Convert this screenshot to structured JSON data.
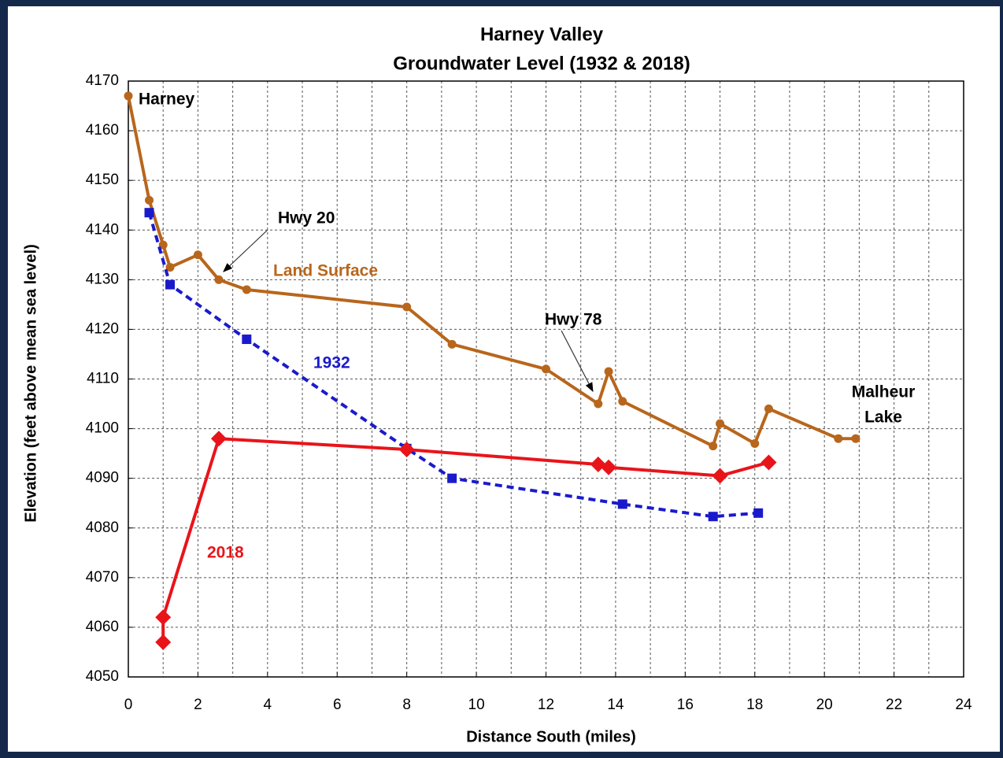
{
  "chart_data": {
    "type": "line",
    "title": "Harney Valley",
    "subtitle": "Groundwater Level (1932 & 2018)",
    "x_label": "Distance South (miles)",
    "y_label": "Elevation (feet above mean sea level)",
    "xlim": [
      0,
      24
    ],
    "ylim": [
      4050,
      4170
    ],
    "xticks": [
      0,
      2,
      4,
      6,
      8,
      10,
      12,
      14,
      16,
      18,
      20,
      22,
      24
    ],
    "yticks": [
      4050,
      4060,
      4070,
      4080,
      4090,
      4100,
      4110,
      4120,
      4130,
      4140,
      4150,
      4160,
      4170
    ],
    "grid": true,
    "series": [
      {
        "name": "Land Surface",
        "color": "#b8661c",
        "marker": "circle",
        "dashed": false,
        "x": [
          0,
          0.6,
          1.0,
          1.2,
          2.0,
          2.6,
          3.4,
          8.0,
          9.3,
          12.0,
          13.5,
          13.8,
          14.2,
          16.8,
          17.0,
          18.0,
          18.4,
          20.4,
          20.9
        ],
        "values": [
          4167,
          4146,
          4137,
          4132.5,
          4135,
          4130,
          4128,
          4124.5,
          4117,
          4112,
          4105,
          4111.5,
          4105.5,
          4096.5,
          4101,
          4097,
          4104,
          4098,
          4098
        ]
      },
      {
        "name": "1932",
        "color": "#1a1acc",
        "marker": "square",
        "dashed": true,
        "x": [
          0.6,
          1.2,
          3.4,
          8.0,
          9.3,
          14.2,
          16.8,
          18.1
        ],
        "values": [
          4143.5,
          4129,
          4118,
          4096,
          4090,
          4084.8,
          4082.3,
          4083
        ]
      },
      {
        "name": "2018",
        "color": "#e8141a",
        "marker": "diamond",
        "dashed": false,
        "x": [
          1.0,
          1.0,
          2.6,
          8.0,
          13.5,
          13.8,
          17.0,
          18.4
        ],
        "values": [
          4057,
          4062,
          4098,
          4095.8,
          4092.8,
          4092.2,
          4090.5,
          4093.2
        ]
      }
    ],
    "annotations": [
      "Harney",
      "Hwy 20",
      "Hwy 78",
      "Malheur",
      "Lake"
    ]
  }
}
